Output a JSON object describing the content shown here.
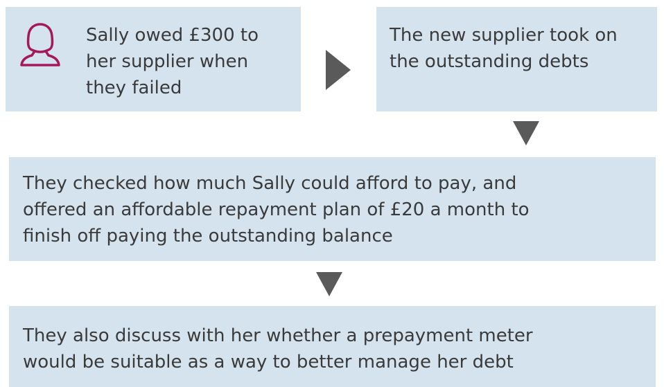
{
  "nodes": [
    {
      "lines": [
        "Sally owed £300 to",
        "her supplier when",
        "they failed"
      ]
    },
    {
      "lines": [
        "The new supplier took on",
        "the outstanding debts"
      ]
    },
    {
      "lines": [
        "They checked how much Sally could afford to pay, and",
        "offered an affordable repayment plan of £20 a month to",
        "finish off paying the outstanding balance"
      ]
    },
    {
      "lines": [
        "They also discuss with her whether a prepayment meter",
        "would be suitable as a way to better manage her debt"
      ]
    }
  ]
}
